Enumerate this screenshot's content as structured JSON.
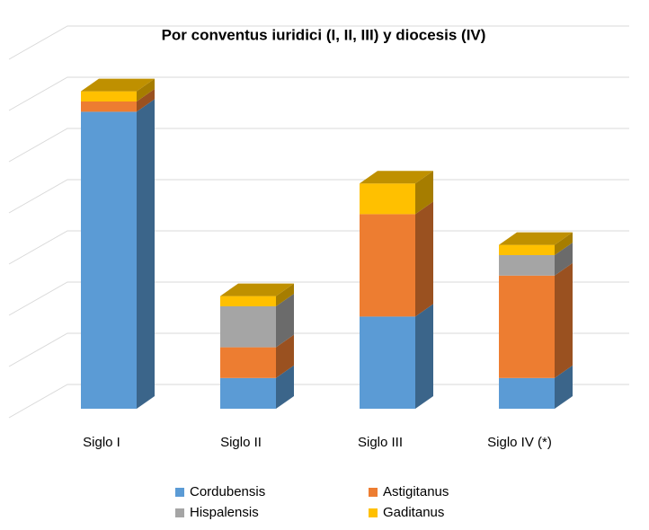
{
  "chart_data": {
    "type": "bar3d_stacked",
    "title": "Por conventus iuridici  (I, II, III) y diocesis (IV)",
    "categories": [
      "Siglo I",
      "Siglo II",
      "Siglo III",
      "Siglo IV (*)"
    ],
    "series": [
      {
        "name": "Cordubensis",
        "color": "#5b9bd5",
        "values": [
          5.8,
          0.6,
          1.8,
          0.6
        ]
      },
      {
        "name": "Astigitanus",
        "color": "#ed7d31",
        "values": [
          0.2,
          0.6,
          2.0,
          2.0
        ]
      },
      {
        "name": "Hispalensis",
        "color": "#a5a5a5",
        "values": [
          0,
          0.8,
          0,
          0.4
        ]
      },
      {
        "name": "Gaditanus",
        "color": "#ffc000",
        "values": [
          0.2,
          0.2,
          0.6,
          0.2
        ]
      }
    ],
    "ylim": [
      0,
      7
    ],
    "yticks": [
      0,
      1,
      2,
      3,
      4,
      5,
      6,
      7
    ],
    "grid": true
  }
}
